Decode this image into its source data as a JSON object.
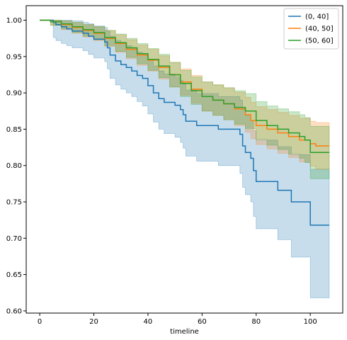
{
  "chart_data": {
    "type": "line",
    "title": "",
    "xlabel": "timeline",
    "ylabel": "",
    "xlim": [
      -5,
      112
    ],
    "ylim": [
      0.597,
      1.02
    ],
    "xticks": [
      0,
      20,
      40,
      60,
      80,
      100
    ],
    "yticks": [
      0.6,
      0.65,
      0.7,
      0.75,
      0.8,
      0.85,
      0.9,
      0.95,
      1.0
    ],
    "grid": false,
    "legend_position": "top-right",
    "series": [
      {
        "name": "(0, 40]",
        "color": "#1f77b4",
        "x": [
          0,
          5,
          6,
          8,
          10,
          12,
          16,
          18,
          20,
          24,
          25,
          26,
          28,
          30,
          32,
          34,
          36,
          38,
          40,
          42,
          44,
          46,
          50,
          52,
          53,
          54,
          58,
          66,
          74,
          75,
          76,
          78,
          79,
          80,
          88,
          93,
          100,
          107
        ],
        "y": [
          1.0,
          0.997,
          0.994,
          0.991,
          0.988,
          0.985,
          0.982,
          0.978,
          0.974,
          0.97,
          0.962,
          0.952,
          0.944,
          0.939,
          0.935,
          0.93,
          0.924,
          0.92,
          0.91,
          0.9,
          0.892,
          0.887,
          0.883,
          0.877,
          0.87,
          0.861,
          0.855,
          0.85,
          0.843,
          0.827,
          0.818,
          0.81,
          0.793,
          0.778,
          0.766,
          0.75,
          0.718,
          0.718
        ],
        "ci_lower": [
          1.0,
          0.976,
          0.972,
          0.968,
          0.965,
          0.962,
          0.958,
          0.953,
          0.948,
          0.943,
          0.933,
          0.92,
          0.911,
          0.905,
          0.9,
          0.895,
          0.888,
          0.882,
          0.871,
          0.86,
          0.85,
          0.844,
          0.839,
          0.832,
          0.824,
          0.813,
          0.806,
          0.8,
          0.789,
          0.77,
          0.76,
          0.75,
          0.73,
          0.713,
          0.698,
          0.674,
          0.618,
          0.618
        ],
        "ci_upper": [
          1.0,
          1.0,
          1.0,
          1.0,
          1.0,
          0.999,
          0.997,
          0.995,
          0.992,
          0.99,
          0.985,
          0.978,
          0.972,
          0.968,
          0.965,
          0.961,
          0.956,
          0.953,
          0.945,
          0.937,
          0.93,
          0.926,
          0.922,
          0.917,
          0.912,
          0.904,
          0.899,
          0.895,
          0.89,
          0.877,
          0.869,
          0.862,
          0.848,
          0.835,
          0.826,
          0.815,
          0.795,
          0.795
        ]
      },
      {
        "name": "(40, 50]",
        "color": "#ff7f0e",
        "x": [
          0,
          4,
          8,
          12,
          16,
          20,
          24,
          28,
          32,
          36,
          40,
          44,
          48,
          52,
          56,
          60,
          64,
          68,
          72,
          76,
          78,
          80,
          84,
          88,
          92,
          96,
          100,
          102,
          107
        ],
        "y": [
          1.0,
          0.998,
          0.994,
          0.99,
          0.986,
          0.982,
          0.975,
          0.968,
          0.96,
          0.952,
          0.945,
          0.935,
          0.925,
          0.915,
          0.905,
          0.895,
          0.89,
          0.885,
          0.878,
          0.87,
          0.862,
          0.855,
          0.85,
          0.845,
          0.84,
          0.835,
          0.83,
          0.827,
          0.827
        ],
        "ci_lower": [
          1.0,
          0.993,
          0.987,
          0.982,
          0.977,
          0.972,
          0.964,
          0.956,
          0.947,
          0.938,
          0.93,
          0.919,
          0.908,
          0.897,
          0.886,
          0.875,
          0.869,
          0.863,
          0.855,
          0.846,
          0.837,
          0.829,
          0.823,
          0.817,
          0.811,
          0.805,
          0.799,
          0.795,
          0.795
        ],
        "ci_upper": [
          1.0,
          1.0,
          0.999,
          0.997,
          0.994,
          0.991,
          0.986,
          0.98,
          0.973,
          0.966,
          0.96,
          0.951,
          0.942,
          0.933,
          0.924,
          0.915,
          0.911,
          0.907,
          0.901,
          0.894,
          0.887,
          0.881,
          0.877,
          0.873,
          0.869,
          0.865,
          0.861,
          0.859,
          0.859
        ]
      },
      {
        "name": "(50, 60]",
        "color": "#2ca02c",
        "x": [
          0,
          4,
          8,
          12,
          16,
          20,
          24,
          28,
          32,
          36,
          40,
          44,
          48,
          52,
          56,
          60,
          64,
          68,
          72,
          76,
          80,
          84,
          88,
          92,
          96,
          98,
          100,
          107
        ],
        "y": [
          1.0,
          0.998,
          0.995,
          0.991,
          0.987,
          0.983,
          0.976,
          0.969,
          0.962,
          0.954,
          0.946,
          0.937,
          0.925,
          0.913,
          0.903,
          0.895,
          0.89,
          0.885,
          0.88,
          0.875,
          0.862,
          0.855,
          0.85,
          0.845,
          0.84,
          0.835,
          0.818,
          0.818
        ],
        "ci_lower": [
          1.0,
          0.993,
          0.988,
          0.983,
          0.978,
          0.973,
          0.965,
          0.957,
          0.949,
          0.94,
          0.931,
          0.921,
          0.908,
          0.895,
          0.884,
          0.875,
          0.869,
          0.863,
          0.857,
          0.851,
          0.836,
          0.828,
          0.822,
          0.816,
          0.81,
          0.804,
          0.782,
          0.782
        ],
        "ci_upper": [
          1.0,
          1.0,
          0.999,
          0.997,
          0.994,
          0.991,
          0.986,
          0.981,
          0.975,
          0.968,
          0.961,
          0.953,
          0.942,
          0.931,
          0.922,
          0.915,
          0.911,
          0.907,
          0.903,
          0.899,
          0.888,
          0.882,
          0.878,
          0.874,
          0.87,
          0.866,
          0.854,
          0.854
        ]
      }
    ]
  }
}
